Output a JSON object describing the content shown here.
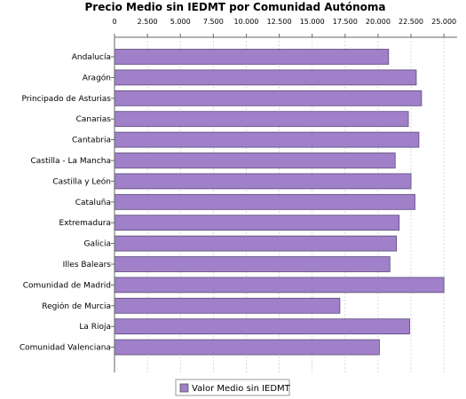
{
  "chart_data": {
    "type": "bar",
    "orientation": "horizontal",
    "title": "Precio Medio sin IEDMT por Comunidad Autónoma",
    "xlim": [
      0,
      26000
    ],
    "ticks": [
      0,
      2500,
      5000,
      7500,
      10000,
      12500,
      15000,
      17500,
      20000,
      22500,
      25000
    ],
    "tick_labels": [
      "0",
      "2.500",
      "5.000",
      "7.500",
      "10.000",
      "12.500",
      "15.000",
      "17.500",
      "20.000",
      "22.500",
      "25.000"
    ],
    "tick_position": "top",
    "grid": true,
    "legend_position": "bottom",
    "bar_color": "#a080c8",
    "categories": [
      "Andalucía",
      "Aragón",
      "Principado de Asturias",
      "Canarias",
      "Cantabria",
      "Castilla - La Mancha",
      "Castilla y León",
      "Cataluña",
      "Extremadura",
      "Galicia",
      "Illes Balears",
      "Comunidad de Madrid",
      "Región de Murcia",
      "La Rioja",
      "Comunidad Valenciana"
    ],
    "series": [
      {
        "name": "Valor Medio sin IEDMT",
        "values": [
          20800,
          22900,
          23300,
          22300,
          23100,
          21300,
          22500,
          22800,
          21600,
          21400,
          20900,
          25000,
          17100,
          22400,
          20100
        ]
      }
    ]
  }
}
